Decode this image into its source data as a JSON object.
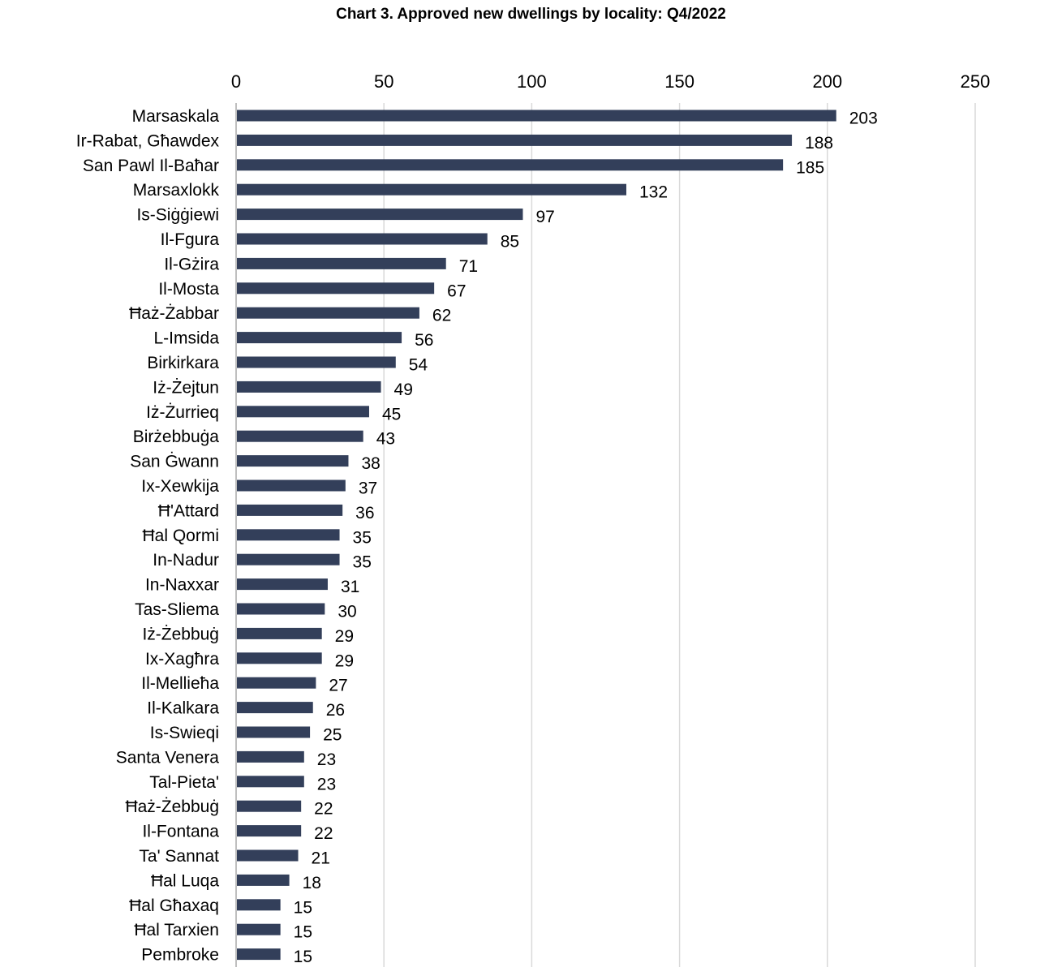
{
  "chart_data": {
    "type": "bar",
    "orientation": "horizontal",
    "title": "Chart 3. Approved new dwellings by locality: Q4/2022",
    "xlabel": "",
    "ylabel": "",
    "xlim": [
      0,
      250
    ],
    "x_ticks": [
      0,
      50,
      100,
      150,
      200,
      250
    ],
    "x_axis_position": "top",
    "grid": "vertical",
    "legend": "none",
    "bar_color": "#333f5a",
    "grid_color": "#d9d9d9",
    "data_labels": "outside-end",
    "categories": [
      "Marsaskala",
      "Ir-Rabat, Għawdex",
      "San Pawl Il-Baħar",
      "Marsaxlokk",
      "Is-Siġġiewi",
      "Il-Fgura",
      "Il-Gżira",
      "Il-Mosta",
      "Ħaż-Żabbar",
      "L-Imsida",
      "Birkirkara",
      "Iż-Żejtun",
      "Iż-Żurrieq",
      "Birżebbuġa",
      "San Ġwann",
      "Ix-Xewkija",
      "Ħ'Attard",
      "Ħal Qormi",
      "In-Nadur",
      "In-Naxxar",
      "Tas-Sliema",
      "Iż-Żebbuġ",
      "Ix-Xagħra",
      "Il-Mellieħa",
      "Il-Kalkara",
      "Is-Swieqi",
      "Santa Venera",
      "Tal-Pieta'",
      "Ħaż-Żebbuġ",
      "Il-Fontana",
      "Ta' Sannat",
      "Ħal Luqa",
      "Ħal Għaxaq",
      "Ħal Tarxien",
      "Pembroke"
    ],
    "values": [
      203,
      188,
      185,
      132,
      97,
      85,
      71,
      67,
      62,
      56,
      54,
      49,
      45,
      43,
      38,
      37,
      36,
      35,
      35,
      31,
      30,
      29,
      29,
      27,
      26,
      25,
      23,
      23,
      22,
      22,
      21,
      18,
      15,
      15,
      15
    ]
  }
}
